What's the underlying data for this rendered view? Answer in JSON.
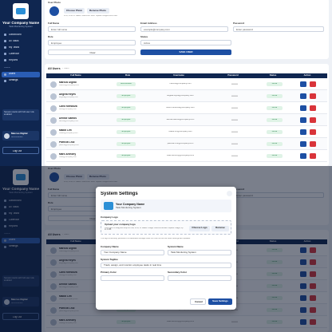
{
  "sidebar": {
    "company_name": "Your Company Name",
    "tagline": "Task Monitoring System",
    "nav": [
      "Dashboard",
      "All Tasks",
      "My Tasks",
      "Calendar",
      "Reports"
    ],
    "admin_heading": "ADMIN",
    "admin_nav": [
      "Users",
      "Settings"
    ],
    "notice": "Session starts with full user role enabled",
    "user_name": "Marcus Digital",
    "user_role": "Administrator",
    "logout": "Log Out"
  },
  "form": {
    "photo_label": "User Photo",
    "choose_photo": "Choose Photo",
    "remove_photo": "Remove Photo",
    "photo_hint": "JPG, PNG or WEBP. Maximum 2MB. Square images work best.",
    "fields": [
      {
        "label": "Full Name",
        "value": "Enter full name"
      },
      {
        "label": "Email Address",
        "value": "example@company.com"
      },
      {
        "label": "Password",
        "value": "Enter password"
      },
      {
        "label": "Role",
        "value": "Employee"
      },
      {
        "label": "Status",
        "value": "Active"
      }
    ],
    "clear": "Clear",
    "save": "SAVE USER"
  },
  "table": {
    "title": "All Users",
    "count": "7 users",
    "headers": [
      "Full Name",
      "Role",
      "Username",
      "Password",
      "Status",
      "Action"
    ],
    "rows": [
      {
        "name": "Marcus Digital",
        "email": "marcus@company.com",
        "role": "Administrator",
        "username": "marcus@company.com",
        "password": "••••••••",
        "status": "Active"
      },
      {
        "name": "Angela Reyes",
        "email": "angela@company.com",
        "role": "Employee",
        "username": "angela.reyes@company.com",
        "password": "••••••••",
        "status": "Active"
      },
      {
        "name": "Carlo Mendoza",
        "email": "carlo@company.com",
        "role": "Employee",
        "username": "carlo.mendoza@company.com",
        "password": "••••••••",
        "status": "Active"
      },
      {
        "name": "Denise Santos",
        "email": "denise@company.com",
        "role": "Employee",
        "username": "denise.santos@company.com",
        "password": "••••••••",
        "status": "Active"
      },
      {
        "name": "Maddi Lim",
        "email": "maddi@company.com",
        "role": "Employee",
        "username": "maddi.lim@company.com",
        "password": "••••••••",
        "status": "Active"
      },
      {
        "name": "Patricia Cruz",
        "email": "patricia@company.com",
        "role": "Employee",
        "username": "patricia.cruz@company.com",
        "password": "••••••••",
        "status": "Active"
      },
      {
        "name": "Mark Anthony",
        "email": "mark@company.com",
        "role": "Employee",
        "username": "mark.anthony@company.com",
        "password": "••••••••",
        "status": "Active"
      }
    ]
  },
  "modal": {
    "title": "System Settings",
    "preview_name": "Your Company Name",
    "preview_tagline": "Task Monitoring System",
    "logo_section": "Company Logo",
    "upload_title": "Upload your company logo",
    "upload_hint": "Click here to drag and drop a PNG, JPG, or WEBP image. Recommended: square image, up to 2 MB.",
    "choose_logo": "Choose Logo",
    "remove": "Remove",
    "storage_note": "The logo is securely persisted to a dedicated storage folder so it will not be lost when settings are updated.",
    "company_name_label": "Company Name",
    "company_name_value": "Your Company Name",
    "system_name_label": "System Name",
    "system_name_value": "Task Monitoring System",
    "tagline_label": "System Tagline",
    "tagline_value": "Track, assign, and monitor employee tasks in real time",
    "primary_label": "Primary Color",
    "secondary_label": "Secondary Color",
    "cancel": "Cancel",
    "save": "Save Settings"
  }
}
